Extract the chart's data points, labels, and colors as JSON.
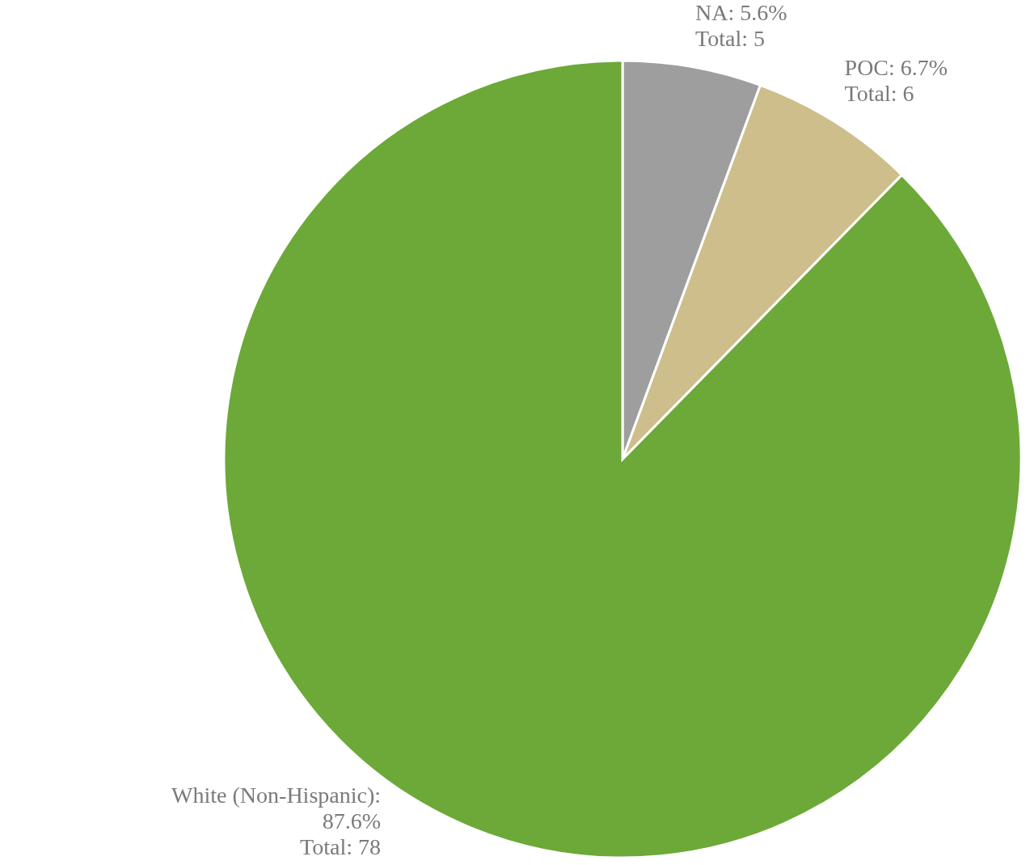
{
  "chart_data": {
    "type": "pie",
    "categories": [
      "NA",
      "POC",
      "White (Non-Hispanic)"
    ],
    "values": [
      5,
      6,
      78
    ],
    "value_labels": [
      ": 5.6%\nTotal: 5",
      ": 6.7%\nTotal: 6",
      ":\n87.6%\nTotal: 78"
    ],
    "colors": [
      "#9e9e9e",
      "#cdbe8c",
      "#6ca938"
    ]
  }
}
